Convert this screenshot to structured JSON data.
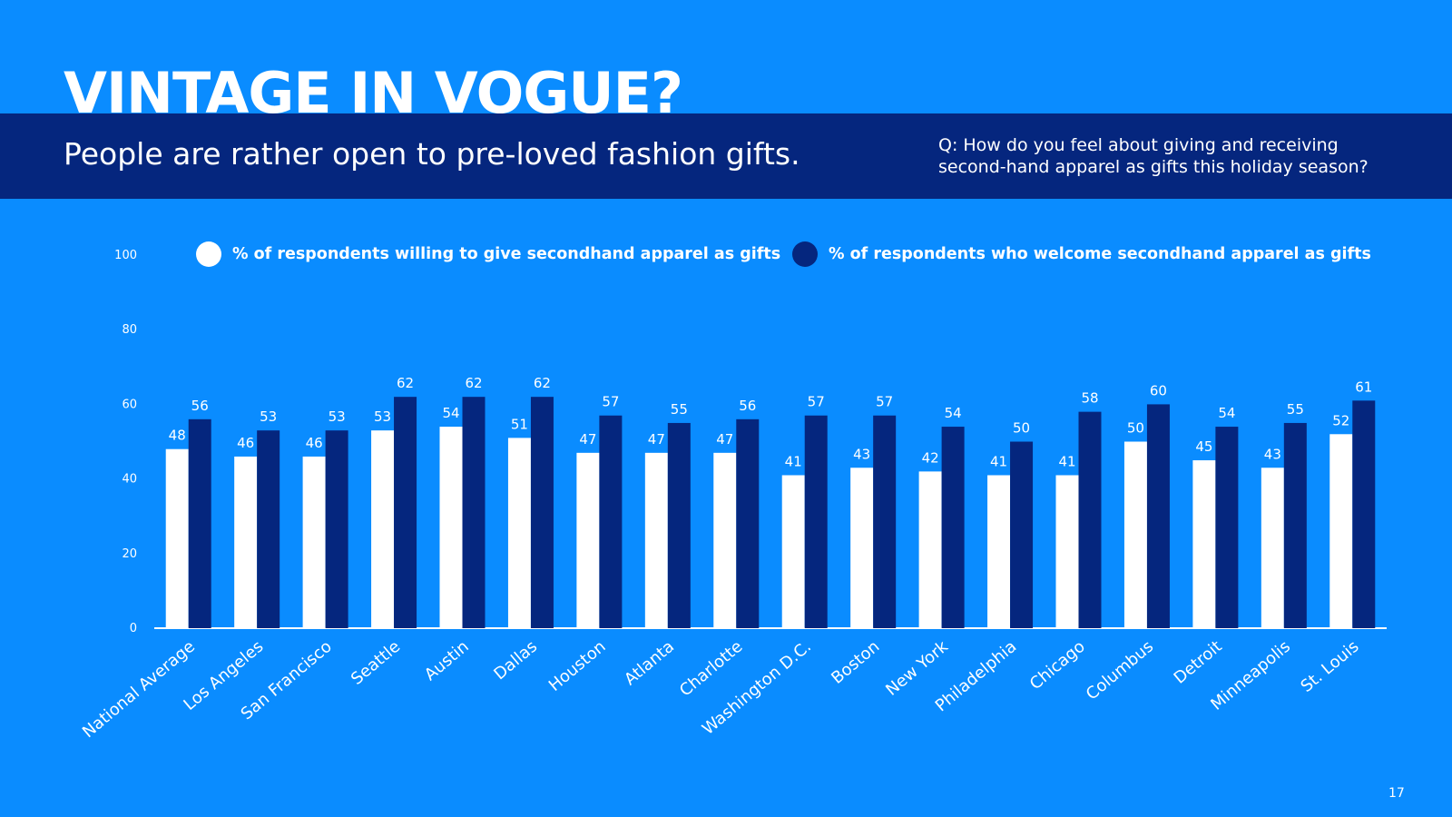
{
  "slide": {
    "title": "VINTAGE IN VOGUE?",
    "subtitle": "People are rather open to pre-loved fashion gifts.",
    "question_line1": "Q: How do you feel about giving and receiving",
    "question_line2": "second-hand apparel as gifts this holiday season?",
    "page_number": "17"
  },
  "colors": {
    "background": "#0a8cff",
    "band": "#05267e",
    "give": "#ffffff",
    "welcome": "#05267e",
    "axis": "#ffffff"
  },
  "legend": {
    "give_label": "% of respondents willing to give secondhand apparel as gifts",
    "welcome_label": "% of respondents who welcome secondhand apparel as gifts"
  },
  "chart_data": {
    "type": "bar",
    "title": "",
    "xlabel": "",
    "ylabel": "",
    "ylim": [
      0,
      100
    ],
    "yticks": [
      0,
      20,
      40,
      60,
      80,
      100
    ],
    "grid": false,
    "legend_position": "top",
    "categories": [
      "National Average",
      "Los Angeles",
      "San Francisco",
      "Seattle",
      "Austin",
      "Dallas",
      "Houston",
      "Atlanta",
      "Charlotte",
      "Washington D.C.",
      "Boston",
      "New York",
      "Philadelphia",
      "Chicago",
      "Columbus",
      "Detroit",
      "Minneapolis",
      "St. Louis"
    ],
    "series": [
      {
        "name": "% of respondents willing to give secondhand apparel as gifts",
        "color": "#ffffff",
        "label_color": "#ffffff",
        "values": [
          48,
          46,
          46,
          53,
          54,
          51,
          47,
          47,
          47,
          41,
          43,
          42,
          41,
          41,
          50,
          45,
          43,
          52
        ]
      },
      {
        "name": "% of respondents who welcome secondhand apparel as gifts",
        "color": "#05267e",
        "label_color": "#ffffff",
        "values": [
          56,
          53,
          53,
          62,
          62,
          62,
          57,
          55,
          56,
          57,
          57,
          54,
          50,
          58,
          60,
          54,
          55,
          61
        ]
      }
    ]
  }
}
